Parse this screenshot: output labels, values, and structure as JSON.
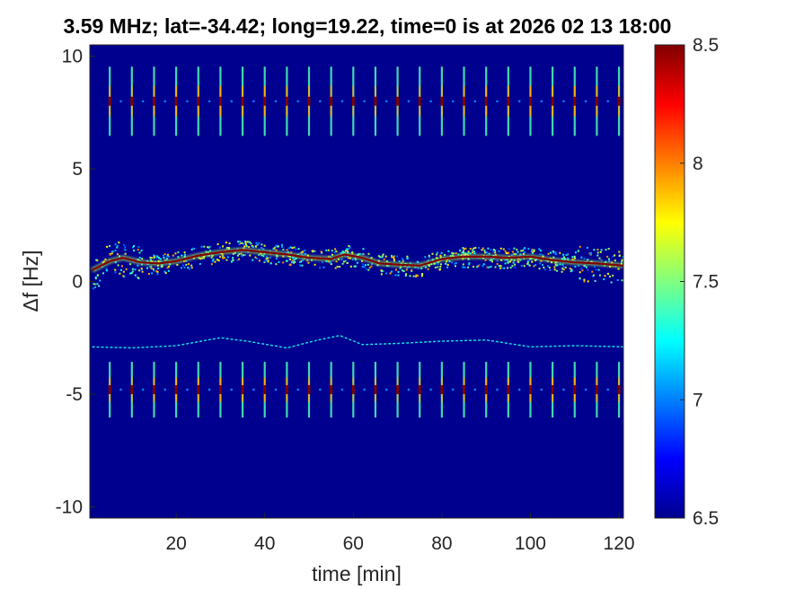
{
  "chart_data": {
    "type": "heatmap",
    "title": "3.59 MHz;  lat=-34.42; long=19.22, time=0 is at 2026 02 13 18:00",
    "xlabel": "time [min]",
    "ylabel": "Δf [Hz]",
    "xlim": [
      0.5,
      121
    ],
    "ylim": [
      -10.5,
      10.5
    ],
    "x_ticks": [
      20,
      40,
      60,
      80,
      100,
      120
    ],
    "y_ticks": [
      -10,
      -5,
      0,
      5,
      10
    ],
    "x_tick_labels": [
      "20",
      "40",
      "60",
      "80",
      "100",
      "120"
    ],
    "y_tick_labels": [
      "-10",
      "-5",
      "0",
      "5",
      "10"
    ],
    "colorbar": {
      "range": [
        6.5,
        8.5
      ],
      "ticks": [
        6.5,
        7,
        7.5,
        8,
        8.5
      ],
      "tick_labels": [
        "6.5",
        "7",
        "7.5",
        "8",
        "8.5"
      ],
      "colormap": "jet"
    },
    "background_level": 6.5,
    "grid": false,
    "features": {
      "main_trace": {
        "level": 8.5,
        "points": [
          [
            1,
            0.5
          ],
          [
            5,
            0.9
          ],
          [
            8,
            1.05
          ],
          [
            12,
            0.85
          ],
          [
            16,
            0.8
          ],
          [
            20,
            0.9
          ],
          [
            25,
            1.15
          ],
          [
            30,
            1.3
          ],
          [
            35,
            1.4
          ],
          [
            40,
            1.3
          ],
          [
            45,
            1.2
          ],
          [
            50,
            1.05
          ],
          [
            55,
            1.0
          ],
          [
            58,
            1.2
          ],
          [
            62,
            1.05
          ],
          [
            66,
            0.8
          ],
          [
            70,
            0.75
          ],
          [
            75,
            0.7
          ],
          [
            80,
            1.0
          ],
          [
            85,
            1.1
          ],
          [
            90,
            1.1
          ],
          [
            95,
            1.05
          ],
          [
            100,
            1.1
          ],
          [
            105,
            0.95
          ],
          [
            110,
            0.85
          ],
          [
            115,
            0.8
          ],
          [
            121,
            0.7
          ]
        ]
      },
      "secondary_trace": {
        "level": 7.3,
        "points": [
          [
            1,
            -2.9
          ],
          [
            10,
            -2.95
          ],
          [
            20,
            -2.85
          ],
          [
            30,
            -2.5
          ],
          [
            36,
            -2.65
          ],
          [
            45,
            -2.95
          ],
          [
            52,
            -2.6
          ],
          [
            57,
            -2.4
          ],
          [
            62,
            -2.8
          ],
          [
            70,
            -2.75
          ],
          [
            80,
            -2.65
          ],
          [
            90,
            -2.6
          ],
          [
            100,
            -2.9
          ],
          [
            110,
            -2.85
          ],
          [
            121,
            -2.9
          ]
        ]
      },
      "pulse_rows": [
        {
          "center": 8.0,
          "half_length": 1.5,
          "level": 8.5
        },
        {
          "center": -4.8,
          "half_length": 1.2,
          "level": 8.5
        }
      ],
      "pulse_times": [
        5,
        10,
        15,
        20,
        25,
        30,
        35,
        40,
        45,
        50,
        55,
        60,
        65,
        70,
        75,
        80,
        85,
        90,
        95,
        100,
        105,
        110,
        115,
        120
      ]
    }
  }
}
